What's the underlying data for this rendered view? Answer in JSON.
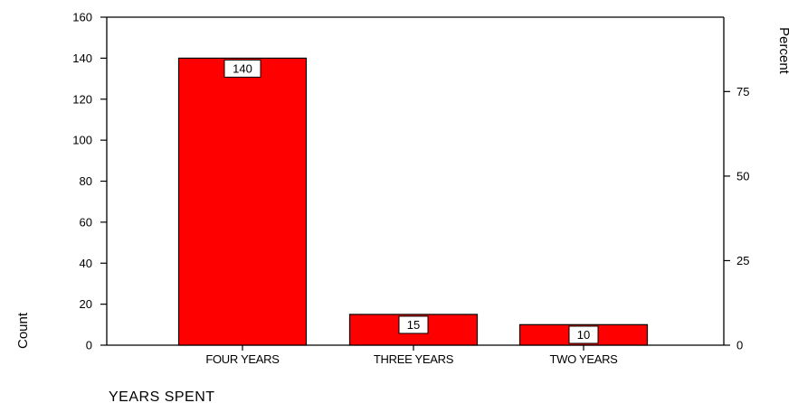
{
  "chart_data": {
    "type": "bar",
    "categories": [
      "FOUR YEARS",
      "THREE YEARS",
      "TWO YEARS"
    ],
    "series": [
      {
        "values": [
          140,
          15,
          10
        ],
        "color": "#ff0000"
      }
    ],
    "data_labels": [
      "140",
      "15",
      "10"
    ],
    "xlabel": "YEARS SPENT",
    "ylabel": "Count",
    "y2label": "Percent",
    "ylim": [
      0,
      160
    ],
    "yticks": [
      "0",
      "20",
      "40",
      "60",
      "80",
      "100",
      "120",
      "140",
      "160"
    ],
    "y2_tick_values": [
      0,
      25,
      50,
      75
    ],
    "y2_tick_labels": [
      "0",
      "25",
      "50",
      "75"
    ],
    "y2_max_percent": 97.0,
    "bar_color": "#ff0000",
    "grid": false,
    "legend": "none"
  }
}
